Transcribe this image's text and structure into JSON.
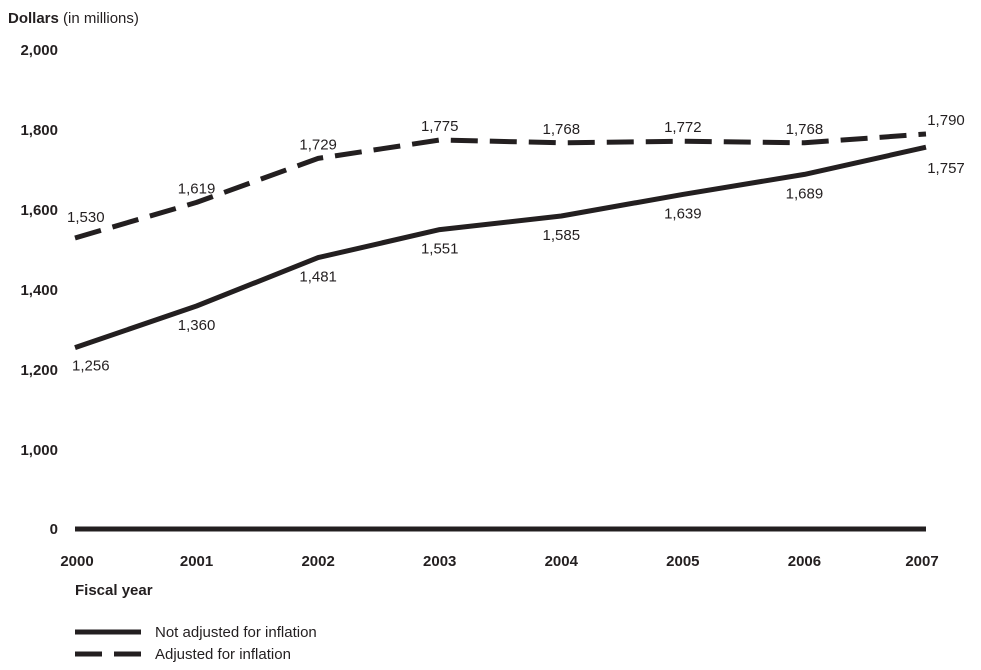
{
  "chart_data": {
    "type": "line",
    "ylabel_bold": "Dollars",
    "ylabel_rest": " (in millions)",
    "xlabel": "Fiscal year",
    "categories": [
      "2000",
      "2001",
      "2002",
      "2003",
      "2004",
      "2005",
      "2006",
      "2007"
    ],
    "y_ticks": [
      "0",
      "1,000",
      "1,200",
      "1,400",
      "1,600",
      "1,800",
      "2,000"
    ],
    "y_tick_values": [
      0,
      1000,
      1200,
      1400,
      1600,
      1800,
      2000
    ],
    "axis_break": "0 to 1,000",
    "ylim": [
      1000,
      2000
    ],
    "grid": false,
    "legend_position": "bottom-left",
    "series": [
      {
        "name": "Not adjusted for inflation",
        "style": "solid",
        "values": [
          1256,
          1360,
          1481,
          1551,
          1585,
          1639,
          1689,
          1757
        ],
        "labels": [
          "1,256",
          "1,360",
          "1,481",
          "1,551",
          "1,585",
          "1,639",
          "1,689",
          "1,757"
        ]
      },
      {
        "name": "Adjusted for inflation",
        "style": "dashed",
        "values": [
          1530,
          1619,
          1729,
          1775,
          1768,
          1772,
          1768,
          1790
        ],
        "labels": [
          "1,530",
          "1,619",
          "1,729",
          "1,775",
          "1,768",
          "1,772",
          "1,768",
          "1,790"
        ]
      }
    ],
    "color": "#231f20"
  }
}
